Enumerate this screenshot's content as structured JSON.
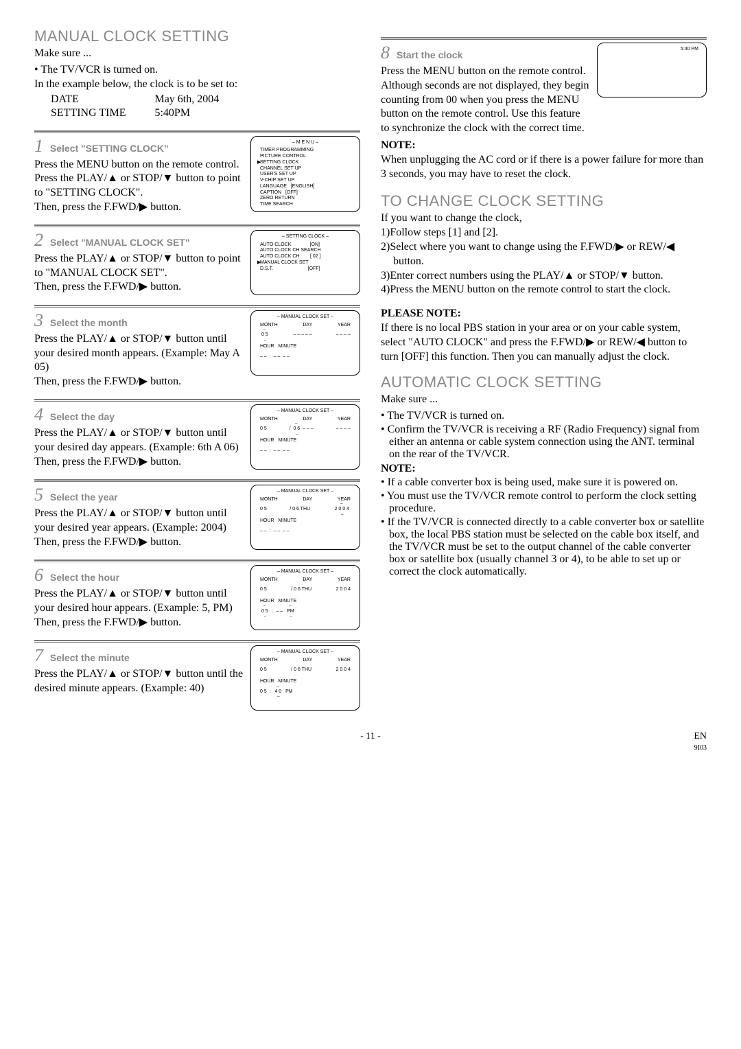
{
  "left": {
    "title": "MANUAL CLOCK SETTING",
    "make_sure": "Make sure ...",
    "bullets": [
      "The TV/VCR is turned on."
    ],
    "intro": "In the example below, the clock is to be set to:",
    "date_label": "DATE",
    "date_value": "May 6th, 2004",
    "time_label": "SETTING TIME",
    "time_value": "5:40PM",
    "steps": [
      {
        "num": "1",
        "label": "Select \"SETTING CLOCK\"",
        "body": [
          "Press the MENU button on the remote control.",
          "Press the PLAY/▲ or STOP/▼ button to point to \"SETTING CLOCK\".",
          "Then, press the F.FWD/▶ button."
        ],
        "osd": {
          "title": "– M E N U –",
          "lines": [
            "TIMER PROGRAMMING",
            "PICTURE CONTROL",
            "SETTING CLOCK",
            "CHANNEL SET UP",
            "USER'S SET UP",
            "V-CHIP SET UP",
            "LANGUAGE   [ENGLISH]",
            "CAPTION   [OFF]",
            "ZERO RETURN",
            "TIME SEARCH"
          ],
          "mark_line": 2
        }
      },
      {
        "num": "2",
        "label": "Select \"MANUAL CLOCK SET\"",
        "body": [
          "Press the PLAY/▲ or STOP/▼ button to point to \"MANUAL CLOCK SET\".",
          "Then, press the F.FWD/▶ button."
        ],
        "osd": {
          "title": "– SETTING CLOCK –",
          "lines": [
            "AUTO CLOCK              [ON]",
            "AUTO CLOCK CH SEARCH",
            "AUTO CLOCK CH        [ 02 ]",
            "MANUAL CLOCK SET",
            "D.S.T.                          [OFF]"
          ],
          "mark_line": 3
        }
      },
      {
        "num": "3",
        "label": "Select the month",
        "body": [
          "Press the PLAY/▲ or STOP/▼ button until your desired month appears. (Example: May  A 05)",
          "Then, press the F.FWD/▶ button."
        ],
        "osd_clock": {
          "month": "0 5",
          "day": "– –",
          "year": "– – – –",
          "hour": "– –",
          "minute": "– –",
          "ampm": "– –",
          "cursor": "month",
          "thu": false
        }
      },
      {
        "num": "4",
        "label": "Select the day",
        "body": [
          "Press the PLAY/▲ or STOP/▼ button until your desired day appears. (Example: 6th  A 06)",
          "Then, press the F.FWD/▶ button."
        ],
        "osd_clock": {
          "month": "0 5",
          "day": "0 6",
          "year": "– – – –",
          "hour": "– –",
          "minute": "– –",
          "ampm": "– –",
          "cursor": "day",
          "thu": false,
          "sep1": "/"
        }
      },
      {
        "num": "5",
        "label": "Select the year",
        "body": [
          "Press the PLAY/▲ or STOP/▼ button until your desired year appears. (Example: 2004)",
          "Then, press the F.FWD/▶ button."
        ],
        "osd_clock": {
          "month": "0 5",
          "day": "0 6",
          "year": "2 0 0 4",
          "hour": "– –",
          "minute": "– –",
          "ampm": "– –",
          "cursor": "year",
          "thu": true,
          "sep1": "/"
        }
      },
      {
        "num": "6",
        "label": "Select the hour",
        "body": [
          "Press the PLAY/▲ or STOP/▼ button until your desired hour appears. (Example: 5, PM)",
          "Then, press the F.FWD/▶ button."
        ],
        "osd_clock": {
          "month": "0 5",
          "day": "0 6",
          "year": "2 0 0 4",
          "hour": "0 5",
          "minute": "– –",
          "ampm": "PM",
          "cursor": "hour",
          "thu": true,
          "sep1": "/"
        }
      },
      {
        "num": "7",
        "label": "Select the minute",
        "body": [
          "Press the PLAY/▲ or STOP/▼ button until the desired minute appears. (Example: 40)"
        ],
        "osd_clock": {
          "month": "0 5",
          "day": "0 6",
          "year": "2 0 0 4",
          "hour": "0 5",
          "minute": "4 0",
          "ampm": "PM",
          "cursor": "minute",
          "thu": true,
          "sep1": "/"
        }
      }
    ]
  },
  "right": {
    "step8": {
      "num": "8",
      "label": "Start the clock",
      "body1": "Press the MENU button on the remote control.",
      "body2": "Although seconds are not displayed, they begin counting from 00 when you press the MENU button on the remote control. Use this feature to synchronize the clock with the correct time.",
      "osd_time": "5:40 PM"
    },
    "note_hd": "NOTE:",
    "note_body": "When unplugging the AC cord or if there is a power failure for more than 3 seconds, you may have to reset the clock.",
    "change_title": "TO CHANGE CLOCK SETTING",
    "change_intro": "If you want to change the clock,",
    "change_steps": [
      "1)Follow steps [1] and [2].",
      "2)Select where you want to change using the F.FWD/▶ or REW/◀ button.",
      "3)Enter correct numbers using the PLAY/▲ or STOP/▼ button.",
      "4)Press the MENU button on the remote control to start the clock."
    ],
    "please_hd": "PLEASE NOTE:",
    "please_body": "If there is no local PBS station in your area or on your cable system, select \"AUTO CLOCK\" and press the F.FWD/▶ or REW/◀ button to turn [OFF] this function. Then you can manually adjust the clock.",
    "auto_title": "AUTOMATIC CLOCK SETTING",
    "auto_make_sure": "Make sure ...",
    "auto_bullets": [
      "The TV/VCR is turned on.",
      "Confirm the TV/VCR is receiving a RF (Radio Frequency) signal from either an antenna or cable system connection using the ANT. terminal on the rear of the TV/VCR."
    ],
    "auto_note_hd": "NOTE:",
    "auto_note_bullets": [
      "If a cable converter box is being used, make sure it is powered on.",
      "You must use the TV/VCR remote control to perform the clock setting procedure.",
      "If the TV/VCR is connected directly to a cable converter box or satellite box, the local PBS station must be selected on the cable box itself, and the TV/VCR must be set to the output channel of the cable converter box or satellite box (usually channel 3 or 4), to be able to set up or correct the clock automatically."
    ]
  },
  "footer": {
    "page": "- 11 -",
    "en": "EN",
    "code": "9I03"
  }
}
